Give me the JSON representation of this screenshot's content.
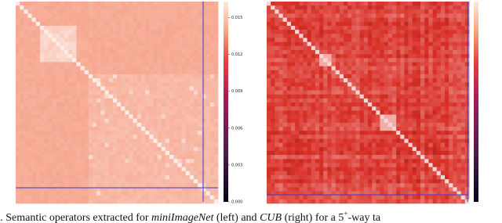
{
  "figure": {
    "left": {
      "colorbar": {
        "ylim": [
          0,
          0.0163
        ],
        "yticks": [
          {
            "value": 0,
            "label": "0.000"
          },
          {
            "value": 0.003,
            "label": "0.003"
          },
          {
            "value": 0.006,
            "label": "0.006"
          },
          {
            "value": 0.009,
            "label": "0.009"
          },
          {
            "value": 0.012,
            "label": "0.012"
          },
          {
            "value": 0.015,
            "label": "0.015"
          }
        ]
      }
    }
  },
  "caption": {
    "parts": [
      "Semantic operators extracted for ",
      "miniImageNet",
      " (left) and ",
      "CUB",
      " (right) for a 5",
      "+",
      "-way ta"
    ]
  }
}
